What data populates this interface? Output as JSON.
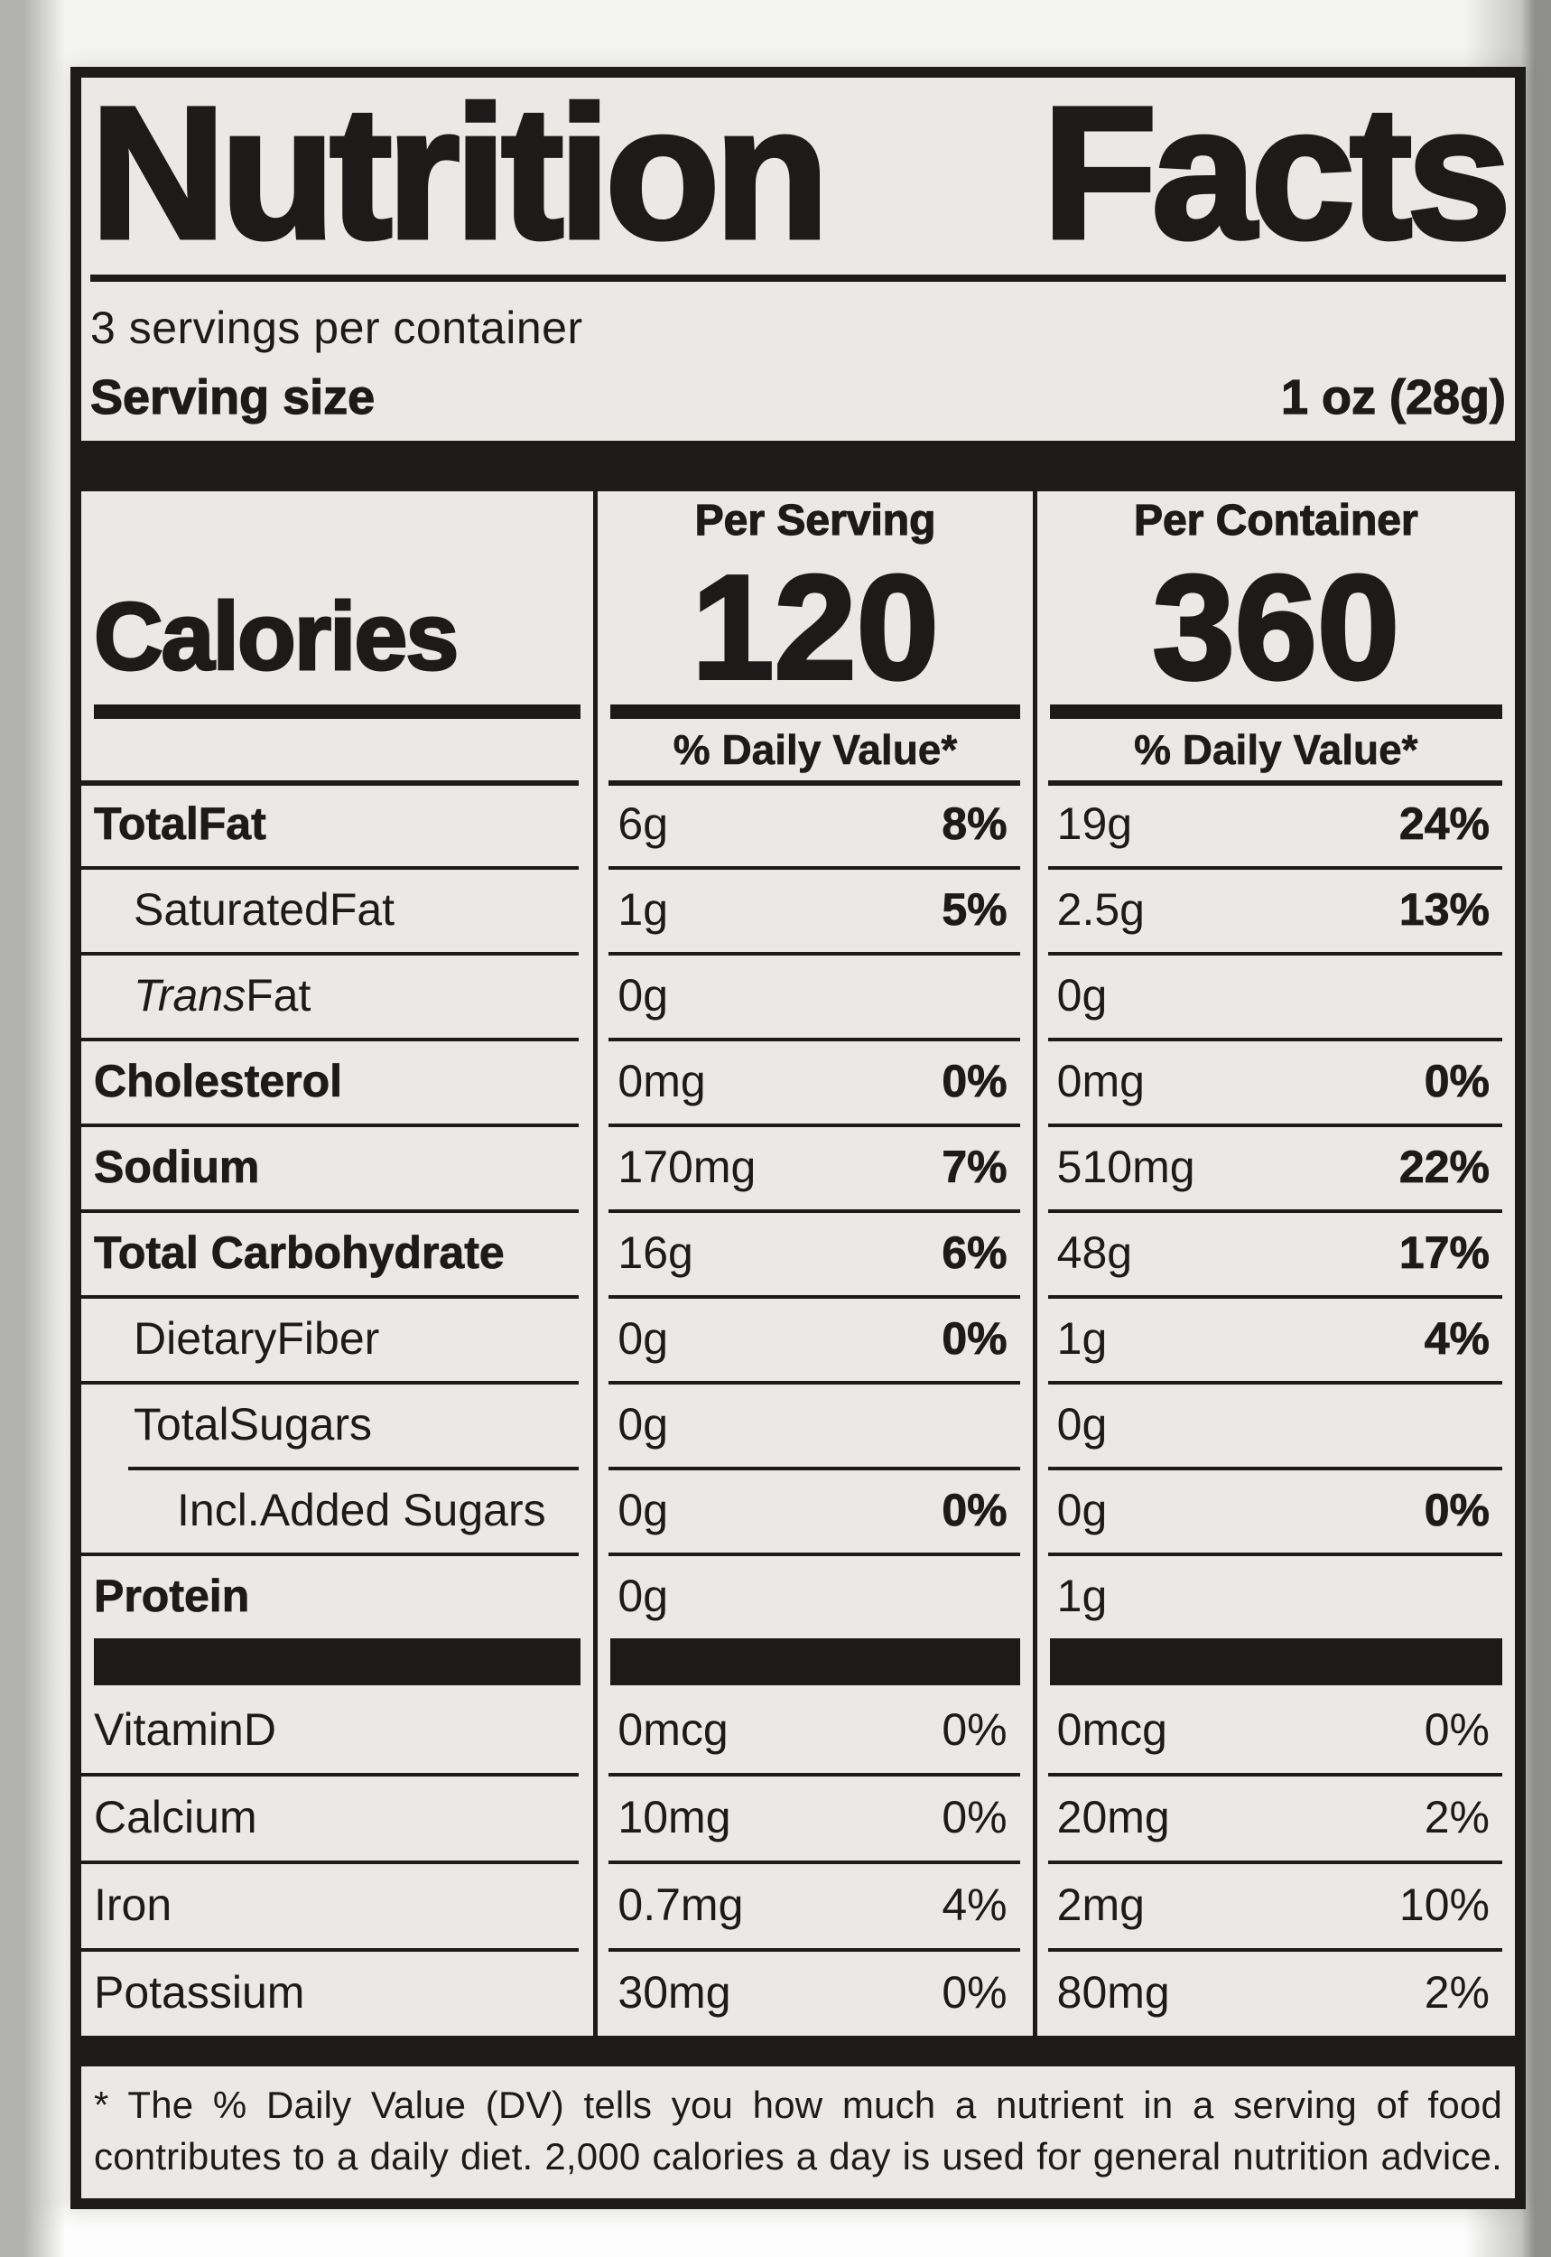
{
  "colors": {
    "ink": "#1d1b1a",
    "paper": "#eae9e5"
  },
  "nutrition_label": {
    "title": "Nutrition Facts",
    "servings_per_container": "3 servings per container",
    "serving_size": {
      "label": "Serving size",
      "value": "1 oz (28g)"
    },
    "calories": {
      "label": "Calories",
      "per_serving_header": "Per Serving",
      "per_container_header": "Per Container",
      "per_serving_value": "120",
      "per_container_value": "360"
    },
    "daily_value_header": "% Daily Value*",
    "nutrients": [
      {
        "name_italic": "",
        "name": "TotalFat",
        "ps_amount": "6g",
        "ps_dv": "8%",
        "pc_amount": "19g",
        "pc_dv": "24%"
      },
      {
        "name_italic": "",
        "name": "SaturatedFat",
        "ps_amount": "1g",
        "ps_dv": "5%",
        "pc_amount": "2.5g",
        "pc_dv": "13%"
      },
      {
        "name_italic": "Trans",
        "name": " Fat",
        "ps_amount": "0g",
        "ps_dv": "",
        "pc_amount": "0g",
        "pc_dv": ""
      },
      {
        "name_italic": "",
        "name": "Cholesterol",
        "ps_amount": "0mg",
        "ps_dv": "0%",
        "pc_amount": "0mg",
        "pc_dv": "0%"
      },
      {
        "name_italic": "",
        "name": "Sodium",
        "ps_amount": "170mg",
        "ps_dv": "7%",
        "pc_amount": "510mg",
        "pc_dv": "22%"
      },
      {
        "name_italic": "",
        "name": "Total Carbohydrate",
        "ps_amount": "16g",
        "ps_dv": "6%",
        "pc_amount": "48g",
        "pc_dv": "17%"
      },
      {
        "name_italic": "",
        "name": "DietaryFiber",
        "ps_amount": "0g",
        "ps_dv": "0%",
        "pc_amount": "1g",
        "pc_dv": "4%"
      },
      {
        "name_italic": "",
        "name": "TotalSugars",
        "ps_amount": "0g",
        "ps_dv": "",
        "pc_amount": "0g",
        "pc_dv": ""
      },
      {
        "name_italic": "",
        "name": "Incl.Added Sugars",
        "ps_amount": "0g",
        "ps_dv": "0%",
        "pc_amount": "0g",
        "pc_dv": "0%"
      },
      {
        "name_italic": "",
        "name": "Protein",
        "ps_amount": "0g",
        "ps_dv": "",
        "pc_amount": "1g",
        "pc_dv": ""
      }
    ],
    "micronutrients": [
      {
        "name": "VitaminD",
        "ps_amount": "0mcg",
        "ps_dv": "0%",
        "pc_amount": "0mcg",
        "pc_dv": "0%"
      },
      {
        "name": "Calcium",
        "ps_amount": "10mg",
        "ps_dv": "0%",
        "pc_amount": "20mg",
        "pc_dv": "2%"
      },
      {
        "name": "Iron",
        "ps_amount": "0.7mg",
        "ps_dv": "4%",
        "pc_amount": "2mg",
        "pc_dv": "10%"
      },
      {
        "name": "Potassium",
        "ps_amount": "30mg",
        "ps_dv": "0%",
        "pc_amount": "80mg",
        "pc_dv": "2%"
      }
    ],
    "footnote": {
      "line1": "* The % Daily Value (DV) tells you how much a nutrient in a serving of food",
      "line2": "contributes to a daily diet. 2,000 calories a day is used for general nutrition advice."
    }
  }
}
